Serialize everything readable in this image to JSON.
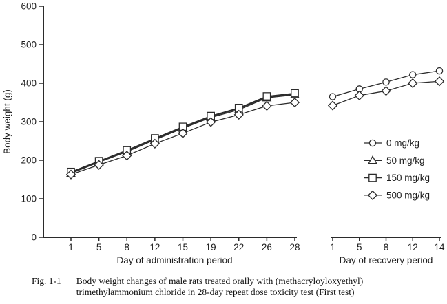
{
  "figure": {
    "caption_label": "Fig. 1-1",
    "caption_line1": "Body weight changes of male rats treated orally with (methacryloyloxyethyl)",
    "caption_line2": "trimethylammonium chloride in 28-day repeat dose toxicity test (First test)"
  },
  "chart_data": {
    "type": "line",
    "title": "",
    "ylabel": "Body weight (g)",
    "ylim": [
      0,
      600
    ],
    "yticks": [
      0,
      100,
      200,
      300,
      400,
      500,
      600
    ],
    "grid": false,
    "line_color": "#2b2b2b",
    "marker_fill": "#ffffff",
    "legend_position": "right-middle",
    "legend": [
      {
        "label": "0 mg/kg",
        "marker": "circle"
      },
      {
        "label": "50 mg/kg",
        "marker": "triangle"
      },
      {
        "label": "150 mg/kg",
        "marker": "square"
      },
      {
        "label": "500 mg/kg",
        "marker": "diamond"
      }
    ],
    "panels": [
      {
        "name": "administration",
        "xlabel": "Day of administration period",
        "categories": [
          "1",
          "5",
          "8",
          "12",
          "15",
          "19",
          "22",
          "26",
          "28"
        ],
        "series": [
          {
            "name": "0 mg/kg",
            "marker": "circle",
            "values": [
              168,
              197,
              224,
              255,
              285,
              313,
              334,
              364,
              372
            ]
          },
          {
            "name": "50 mg/kg",
            "marker": "triangle",
            "values": [
              166,
              195,
              222,
              253,
              283,
              311,
              331,
              362,
              370
            ]
          },
          {
            "name": "150 mg/kg",
            "marker": "square",
            "values": [
              170,
              198,
              226,
              257,
              287,
              315,
              336,
              366,
              374
            ]
          },
          {
            "name": "500 mg/kg",
            "marker": "diamond",
            "values": [
              163,
              188,
              212,
              243,
              270,
              299,
              318,
              341,
              350
            ]
          }
        ]
      },
      {
        "name": "recovery",
        "xlabel": "Day of recovery period",
        "categories": [
          "1",
          "5",
          "8",
          "12",
          "14"
        ],
        "series": [
          {
            "name": "0 mg/kg",
            "marker": "circle",
            "values": [
              365,
              385,
              403,
              422,
              432
            ]
          },
          {
            "name": "500 mg/kg",
            "marker": "diamond",
            "values": [
              342,
              368,
              380,
              400,
              405
            ]
          }
        ]
      }
    ]
  }
}
